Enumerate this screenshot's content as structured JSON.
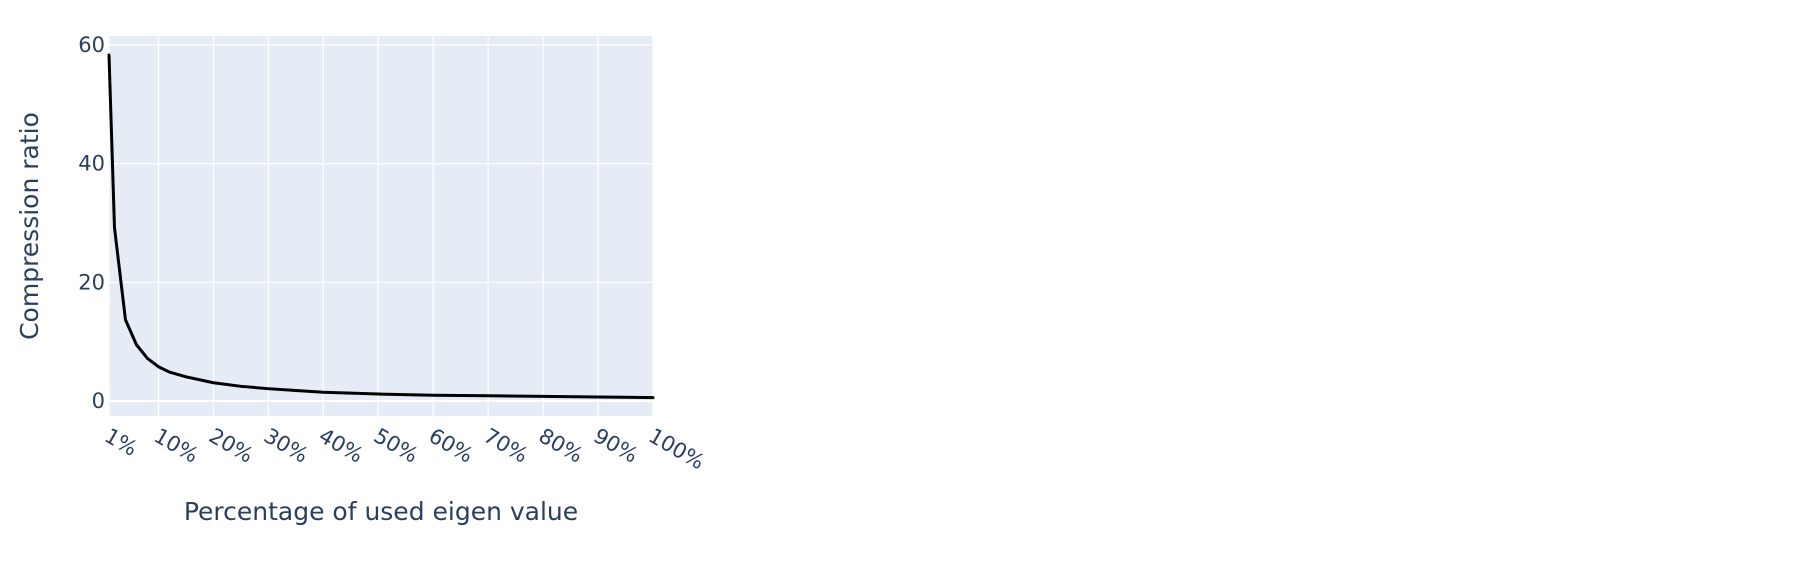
{
  "chart_data": {
    "type": "line",
    "title": "",
    "xlabel": "Percentage of used eigen value",
    "ylabel": "Compression ratio",
    "categories": [
      "1%",
      "10%",
      "20%",
      "30%",
      "40%",
      "50%",
      "60%",
      "70%",
      "80%",
      "90%",
      "100%"
    ],
    "x_range": [
      1,
      100
    ],
    "ylim": [
      -2.5,
      61.5
    ],
    "y_ticks": [
      0,
      20,
      40,
      60
    ],
    "grid": true,
    "legend": "none",
    "series": [
      {
        "color": "#000000",
        "x": [
          1,
          2,
          4,
          6,
          8,
          10,
          12,
          15,
          18,
          20,
          25,
          30,
          35,
          40,
          50,
          60,
          70,
          80,
          90,
          100
        ],
        "values": [
          58.3,
          29.2,
          13.7,
          9.5,
          7.2,
          5.8,
          4.9,
          4.1,
          3.5,
          3.1,
          2.5,
          2.1,
          1.8,
          1.5,
          1.2,
          1.0,
          0.9,
          0.8,
          0.7,
          0.6
        ]
      }
    ]
  },
  "colors": {
    "plot_background": "#e5ecf6",
    "grid": "#ffffff",
    "text": "#2a3f5f",
    "line": "#000000"
  }
}
